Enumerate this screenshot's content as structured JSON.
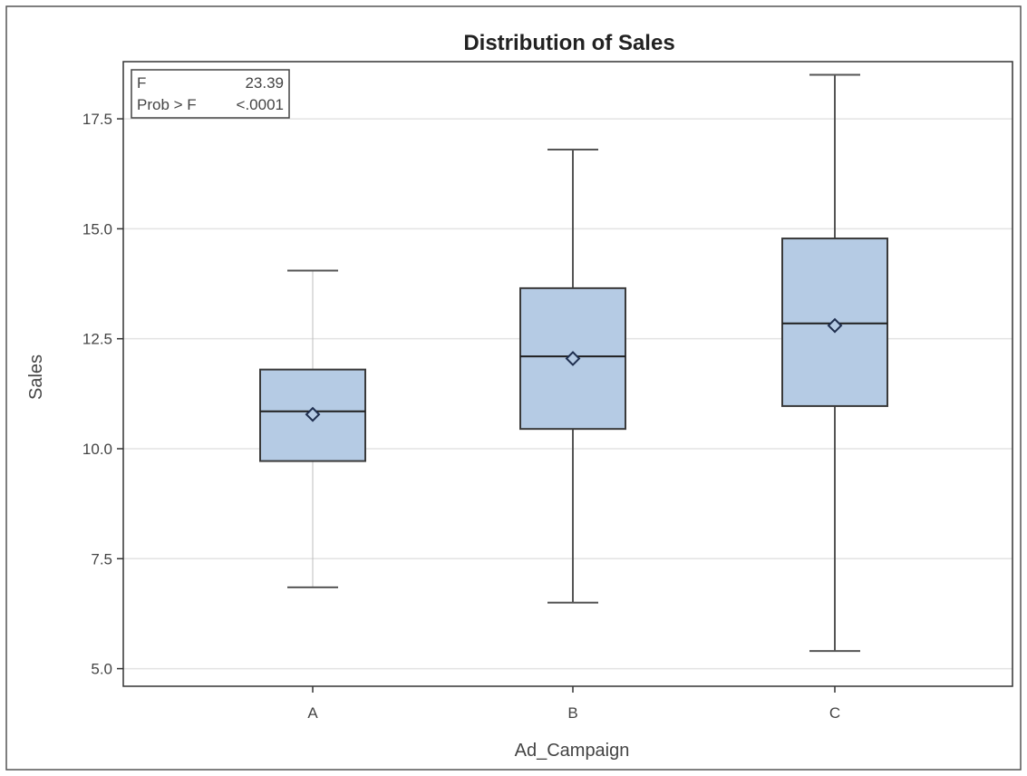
{
  "chart_data": {
    "type": "box",
    "title": "Distribution of Sales",
    "xlabel": "Ad_Campaign",
    "ylabel": "Sales",
    "categories": [
      "A",
      "B",
      "C"
    ],
    "ylim": [
      4.6,
      18.8
    ],
    "yticks": [
      5.0,
      7.5,
      10.0,
      12.5,
      15.0,
      17.5
    ],
    "ytick_labels": [
      "5.0",
      "7.5",
      "10.0",
      "12.5",
      "15.0",
      "17.5"
    ],
    "grid": true,
    "boxes": [
      {
        "category": "A",
        "min": 6.85,
        "q1": 9.72,
        "median": 10.85,
        "q3": 11.8,
        "max": 14.05,
        "mean": 10.78
      },
      {
        "category": "B",
        "min": 6.5,
        "q1": 10.45,
        "median": 12.1,
        "q3": 13.65,
        "max": 16.8,
        "mean": 12.05
      },
      {
        "category": "C",
        "min": 5.4,
        "q1": 10.97,
        "median": 12.85,
        "q3": 14.78,
        "max": 18.5,
        "mean": 12.8
      }
    ],
    "stats_inset": {
      "position": "top-left",
      "rows": [
        {
          "label": "F",
          "value": "23.39"
        },
        {
          "label": "Prob > F",
          "value": "<.0001"
        }
      ]
    },
    "colors": {
      "box_fill": "#b5cbe4",
      "box_stroke": "#3a3a3a",
      "whisker": "#555555",
      "grid": "#e3e3e3",
      "frame": "#333333",
      "text": "#444444"
    }
  }
}
